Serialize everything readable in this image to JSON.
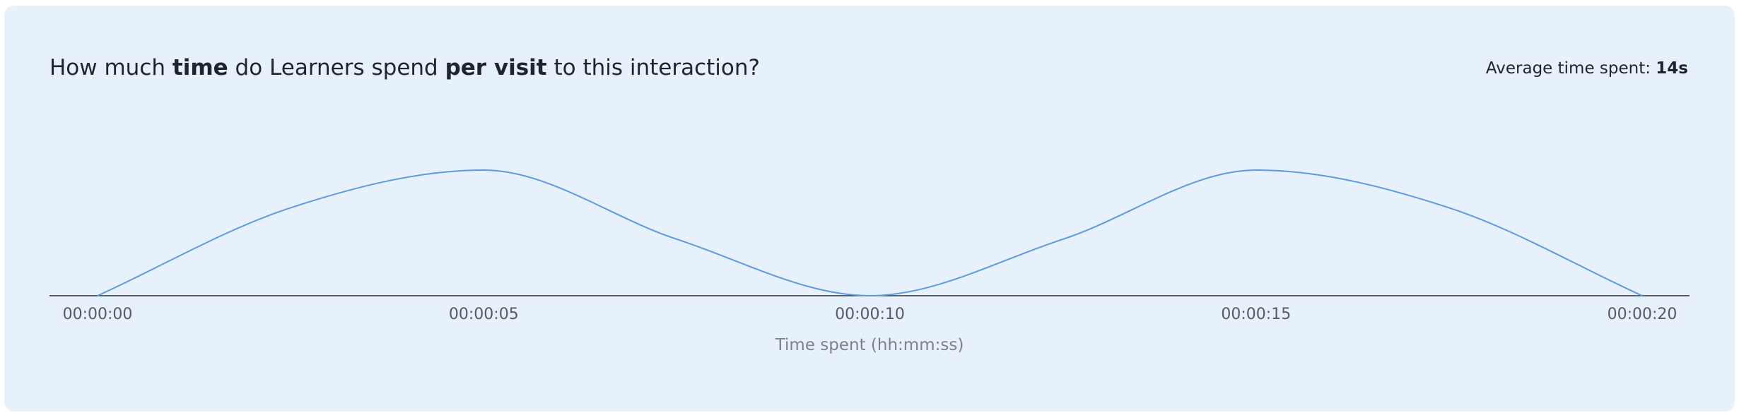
{
  "header": {
    "title_parts": [
      "How much ",
      "time",
      " do Learners spend ",
      "per visit",
      " to this interaction?"
    ],
    "stat_label": "Average time spent: ",
    "stat_value": "14s"
  },
  "colors": {
    "card_background": "#e6f1fc",
    "line": "#5b9ae0",
    "axis": "#2b2f36"
  },
  "chart_data": {
    "type": "line",
    "title": "How much time do Learners spend per visit to this interaction?",
    "xlabel": "Time spent (hh:mm:ss)",
    "ylabel": "",
    "x_ticks": [
      "00:00:00",
      "00:00:05",
      "00:00:10",
      "00:00:15",
      "00:00:20"
    ],
    "xlim": [
      0,
      20
    ],
    "ylim": [
      0,
      1
    ],
    "grid": false,
    "series": [
      {
        "x": [
          0,
          2.5,
          5,
          7.5,
          10,
          12.5,
          15,
          17.5,
          20
        ],
        "y": [
          0,
          0.7,
          1,
          0.45,
          0,
          0.45,
          1,
          0.7,
          0
        ]
      }
    ]
  }
}
